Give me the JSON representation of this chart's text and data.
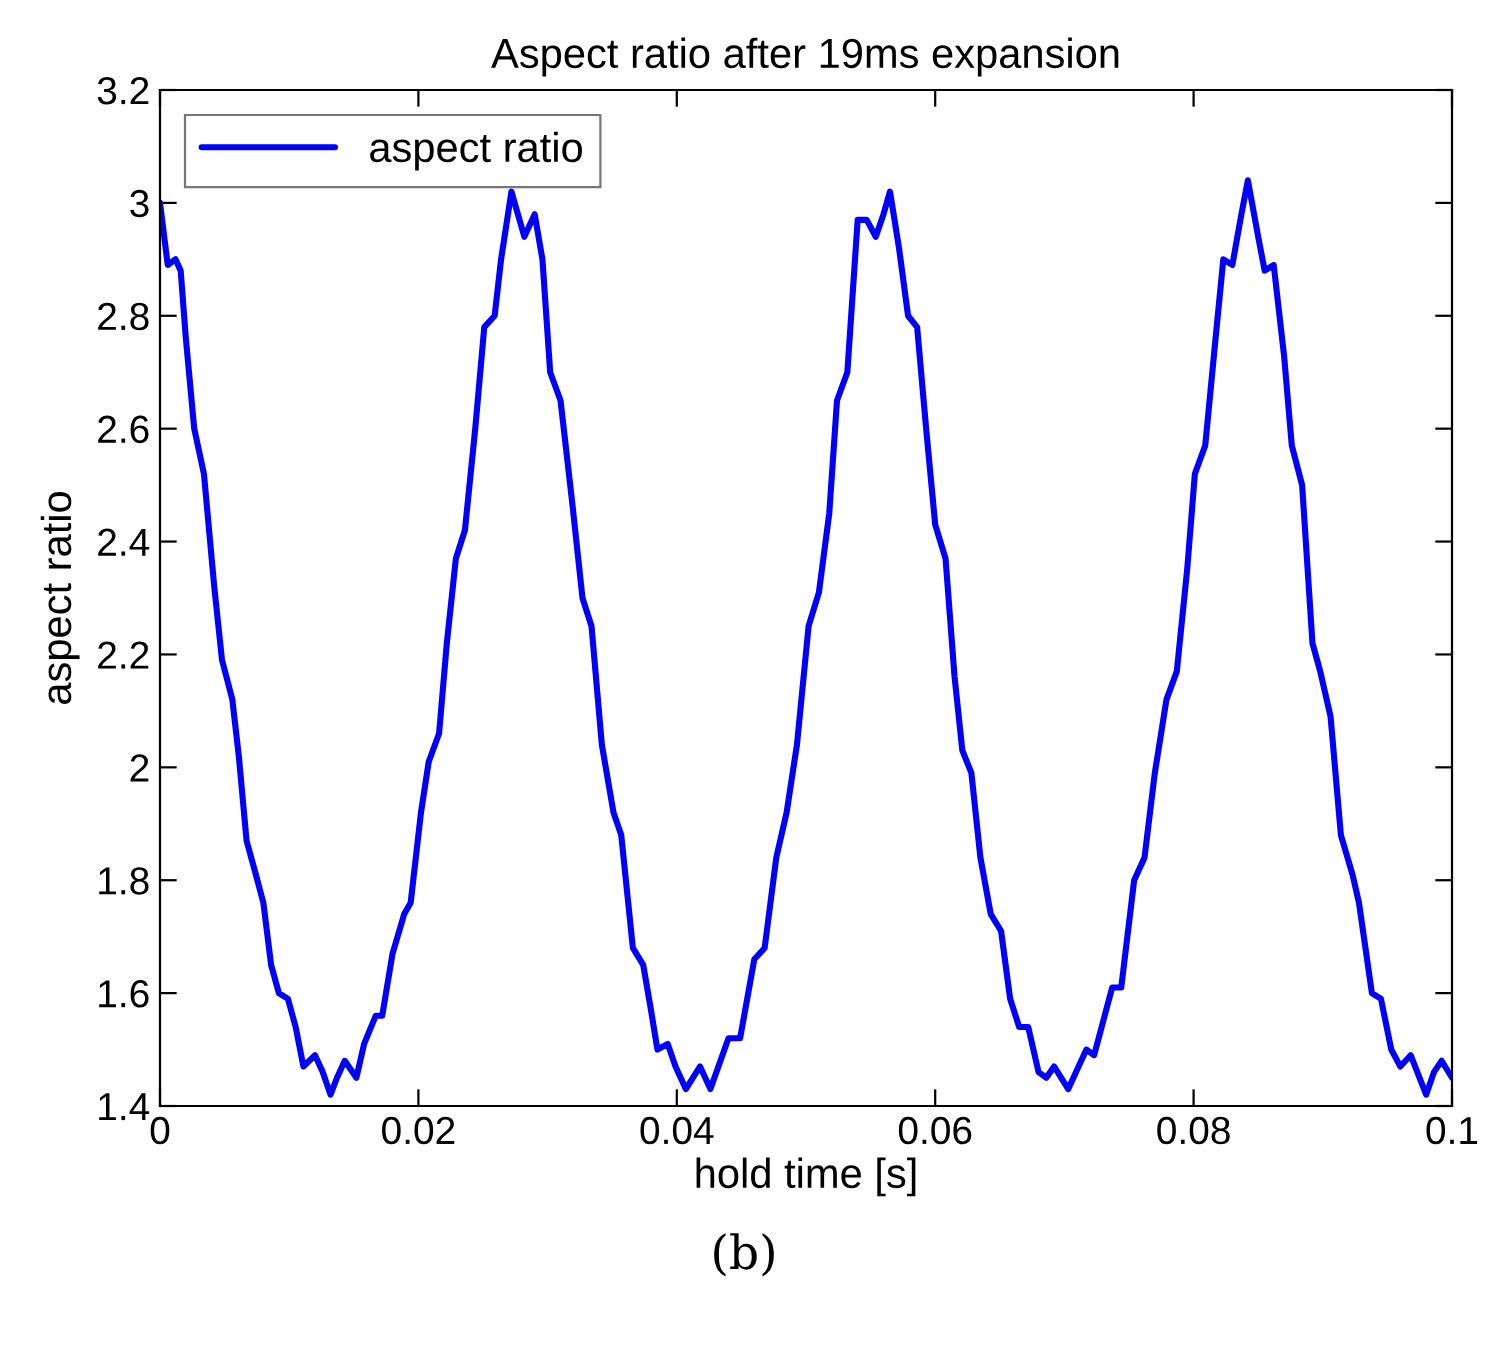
{
  "chart_data": {
    "type": "line",
    "title": "Aspect ratio after 19ms expansion",
    "xlabel": "hold time [s]",
    "ylabel": "aspect ratio",
    "annotations": [
      "(b)"
    ],
    "xlim": [
      0,
      0.1
    ],
    "xticks": [
      0,
      0.02,
      0.04,
      0.06,
      0.08,
      0.1
    ],
    "ylim": [
      1.4,
      3.2
    ],
    "yticks": [
      1.4,
      1.6,
      1.8,
      2,
      2.2,
      2.4,
      2.6,
      2.8,
      3,
      3.2
    ],
    "grid": false,
    "legend": "top left",
    "marker": "none",
    "line_style": "solid",
    "series": [
      {
        "name": "aspect ratio",
        "color": "#0000ff",
        "x": [
          0,
          0.0006,
          0.0012,
          0.0016,
          0.002,
          0.00265,
          0.0034,
          0.0042,
          0.0048,
          0.0056,
          0.0061,
          0.0067,
          0.0073,
          0.008,
          0.0086,
          0.0092,
          0.0099,
          0.0105,
          0.0111,
          0.012,
          0.0126,
          0.0132,
          0.0137,
          0.0143,
          0.0152,
          0.0158,
          0.0167,
          0.0172,
          0.018,
          0.0189,
          0.0194,
          0.0202,
          0.0208,
          0.0216,
          0.0222,
          0.0229,
          0.0236,
          0.0244,
          0.0251,
          0.0259,
          0.0264,
          0.0272,
          0.0277,
          0.0282,
          0.029,
          0.0296,
          0.0302,
          0.031,
          0.0319,
          0.0327,
          0.0334,
          0.0342,
          0.0351,
          0.0357,
          0.0366,
          0.0374,
          0.038,
          0.0385,
          0.0393,
          0.0399,
          0.0407,
          0.0418,
          0.0426,
          0.044,
          0.0449,
          0.046,
          0.0468,
          0.0477,
          0.0485,
          0.0493,
          0.0502,
          0.051,
          0.0518,
          0.0524,
          0.0532,
          0.054,
          0.0547,
          0.0554,
          0.056,
          0.0565,
          0.0572,
          0.0579,
          0.0586,
          0.0593,
          0.06,
          0.0608,
          0.0615,
          0.0621,
          0.0628,
          0.0635,
          0.0643,
          0.0651,
          0.0658,
          0.0665,
          0.0672,
          0.068,
          0.0686,
          0.0692,
          0.0703,
          0.0717,
          0.0723,
          0.0737,
          0.0744,
          0.0754,
          0.0762,
          0.077,
          0.0779,
          0.0787,
          0.0795,
          0.0801,
          0.0809,
          0.0817,
          0.0823,
          0.083,
          0.0837,
          0.0842,
          0.085,
          0.0855,
          0.0862,
          0.087,
          0.0876,
          0.0884,
          0.0892,
          0.0898,
          0.0906,
          0.0914,
          0.0923,
          0.0928,
          0.0938,
          0.0945,
          0.0953,
          0.096,
          0.0968,
          0.098,
          0.0986,
          0.0992,
          0.1
        ],
        "values": [
          3.0,
          2.89,
          2.9,
          2.88,
          2.76,
          2.6,
          2.52,
          2.32,
          2.19,
          2.12,
          2.02,
          1.87,
          1.82,
          1.76,
          1.65,
          1.6,
          1.59,
          1.54,
          1.47,
          1.49,
          1.46,
          1.42,
          1.45,
          1.48,
          1.45,
          1.51,
          1.56,
          1.56,
          1.67,
          1.74,
          1.76,
          1.92,
          2.01,
          2.06,
          2.22,
          2.37,
          2.42,
          2.6,
          2.78,
          2.8,
          2.9,
          3.02,
          2.98,
          2.94,
          2.98,
          2.9,
          2.7,
          2.65,
          2.47,
          2.3,
          2.25,
          2.04,
          1.92,
          1.88,
          1.68,
          1.65,
          1.57,
          1.5,
          1.51,
          1.47,
          1.43,
          1.47,
          1.43,
          1.52,
          1.52,
          1.66,
          1.68,
          1.84,
          1.92,
          2.04,
          2.25,
          2.31,
          2.45,
          2.65,
          2.7,
          2.97,
          2.97,
          2.94,
          2.98,
          3.02,
          2.92,
          2.8,
          2.78,
          2.6,
          2.43,
          2.37,
          2.16,
          2.03,
          1.99,
          1.84,
          1.74,
          1.71,
          1.59,
          1.54,
          1.54,
          1.46,
          1.45,
          1.47,
          1.43,
          1.5,
          1.49,
          1.61,
          1.61,
          1.8,
          1.84,
          1.99,
          2.12,
          2.17,
          2.35,
          2.52,
          2.57,
          2.76,
          2.9,
          2.89,
          2.98,
          3.04,
          2.94,
          2.88,
          2.89,
          2.73,
          2.57,
          2.5,
          2.22,
          2.17,
          2.09,
          1.88,
          1.81,
          1.76,
          1.6,
          1.59,
          1.5,
          1.47,
          1.49,
          1.42,
          1.46,
          1.48,
          1.45
        ]
      }
    ]
  }
}
